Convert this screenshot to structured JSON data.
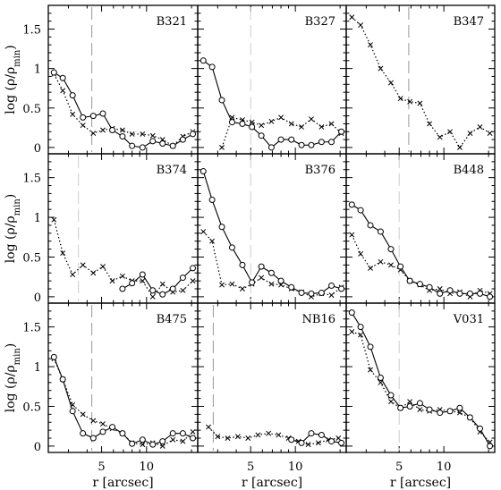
{
  "figure": {
    "ylabel": "log (ρ/ρ",
    "ylabel_sub": "min",
    "ylabel_close": ")",
    "xlabel": "r [arcsec]"
  },
  "chart_data": {
    "type": "line",
    "layout": "3x3 grid, shared axes",
    "x_scale": "log",
    "xlim": [
      2.2,
      22
    ],
    "ylim": [
      -0.08,
      1.8
    ],
    "xticks": [
      5,
      10
    ],
    "yticks": [
      0,
      0.5,
      1,
      1.5
    ],
    "ytick_labels": [
      "0",
      "0.5",
      "1",
      "1.5"
    ],
    "series_styles": {
      "solid": "solid line with open circles",
      "dotted": "dotted line with crosses"
    },
    "panels": [
      {
        "name": "B321",
        "vline": 4.3,
        "vline_color": "#999999",
        "solid": {
          "x": [
            2.4,
            2.75,
            3.2,
            3.75,
            4.4,
            5.1,
            5.9,
            6.9,
            8.0,
            9.4,
            11.0,
            12.8,
            15.0,
            17.5,
            20.4
          ],
          "y": [
            0.95,
            0.88,
            0.66,
            0.38,
            0.4,
            0.43,
            0.22,
            0.14,
            0.02,
            0.0,
            0.08,
            0.05,
            0.02,
            0.1,
            0.17
          ]
        },
        "dotted": {
          "x": [
            2.4,
            2.75,
            3.2,
            3.75,
            4.4,
            5.1,
            5.9,
            6.9,
            8.0,
            9.4,
            11.0,
            12.8,
            15.0,
            17.5,
            20.4
          ],
          "y": [
            0.93,
            0.72,
            0.42,
            0.28,
            0.18,
            0.22,
            0.24,
            0.22,
            0.17,
            0.17,
            0.15,
            0.1,
            0.02,
            0.14,
            0.2
          ]
        }
      },
      {
        "name": "B327",
        "vline": 5.0,
        "vline_color": "#cccccc",
        "solid": {
          "x": [
            2.4,
            2.75,
            3.2,
            3.75,
            4.4,
            5.1,
            5.9,
            6.9,
            8.0,
            9.4,
            11.0,
            12.8,
            15.0,
            17.5,
            20.4
          ],
          "y": [
            1.1,
            1.02,
            0.6,
            0.32,
            0.3,
            0.26,
            0.15,
            0.0,
            0.1,
            0.1,
            0.03,
            0.03,
            0.07,
            0.07,
            0.2
          ]
        },
        "dotted": {
          "x": [
            3.2,
            3.75,
            4.4,
            5.1,
            5.9,
            6.9,
            8.0,
            9.4,
            11.0,
            12.8,
            15.0,
            17.5,
            20.4
          ],
          "y": [
            0.0,
            0.38,
            0.35,
            0.32,
            0.28,
            0.33,
            0.38,
            0.3,
            0.26,
            0.36,
            0.26,
            0.3,
            0.18
          ]
        }
      },
      {
        "name": "B347",
        "vline": 5.8,
        "vline_color": "#999999",
        "solid": {
          "x": [],
          "y": []
        },
        "dotted": {
          "x": [
            2.4,
            2.75,
            3.2,
            3.75,
            4.4,
            5.1,
            5.9,
            6.9,
            8.0,
            9.4,
            11.0,
            12.8,
            15.0,
            17.5,
            20.4
          ],
          "y": [
            1.65,
            1.55,
            1.3,
            1.0,
            0.82,
            0.62,
            0.58,
            0.56,
            0.3,
            0.13,
            0.2,
            0.0,
            0.18,
            0.26,
            0.18
          ]
        }
      },
      {
        "name": "B374",
        "vline": 3.5,
        "vline_color": "#cccccc",
        "solid": {
          "x": [
            6.9,
            8.0,
            9.4,
            11.0,
            12.8,
            15.0,
            17.5,
            20.4
          ],
          "y": [
            0.1,
            0.17,
            0.28,
            0.08,
            0.03,
            0.1,
            0.24,
            0.36
          ]
        },
        "dotted": {
          "x": [
            2.4,
            2.75,
            3.2,
            3.75,
            4.4,
            5.1,
            5.9,
            6.9,
            8.0,
            9.4,
            11.0,
            12.8,
            15.0,
            17.5,
            20.4
          ],
          "y": [
            0.97,
            0.55,
            0.28,
            0.4,
            0.3,
            0.38,
            0.2,
            0.26,
            0.2,
            0.2,
            0.0,
            0.16,
            0.06,
            0.08,
            0.2
          ]
        }
      },
      {
        "name": "B376",
        "vline": 5.0,
        "vline_color": "#cccccc",
        "solid": {
          "x": [
            2.4,
            2.75,
            3.2,
            3.75,
            4.4,
            5.1,
            5.9,
            6.9,
            8.0,
            9.4,
            11.0,
            12.8,
            15.0,
            17.5,
            20.4
          ],
          "y": [
            1.58,
            1.22,
            0.88,
            0.62,
            0.4,
            0.18,
            0.38,
            0.3,
            0.2,
            0.12,
            0.05,
            0.04,
            0.05,
            0.14,
            0.1
          ]
        },
        "dotted": {
          "x": [
            2.4,
            2.75,
            3.2,
            3.75,
            4.4,
            5.1,
            5.9,
            6.9,
            8.0,
            9.4,
            11.0,
            12.8,
            15.0,
            17.5,
            20.4
          ],
          "y": [
            0.82,
            0.7,
            0.15,
            0.16,
            0.1,
            0.16,
            0.24,
            0.16,
            0.15,
            0.1,
            0.06,
            0.0,
            0.04,
            0.02,
            0.12
          ]
        }
      },
      {
        "name": "B448",
        "vline": 5.0,
        "vline_color": "#cccccc",
        "solid": {
          "x": [
            2.4,
            2.75,
            3.2,
            3.75,
            4.4,
            5.1,
            5.9,
            6.9,
            8.0,
            9.4,
            11.0,
            12.8,
            15.0,
            17.5,
            20.4
          ],
          "y": [
            1.16,
            1.09,
            0.9,
            0.82,
            0.6,
            0.38,
            0.2,
            0.16,
            0.12,
            0.04,
            0.08,
            0.04,
            0.04,
            0.04,
            0.0
          ]
        },
        "dotted": {
          "x": [
            2.4,
            2.75,
            3.2,
            3.75,
            4.4,
            5.1,
            5.9,
            6.9,
            8.0,
            9.4,
            11.0,
            12.8,
            15.0,
            17.5,
            20.4
          ],
          "y": [
            0.78,
            0.54,
            0.36,
            0.44,
            0.4,
            0.34,
            0.2,
            0.15,
            0.08,
            0.1,
            0.04,
            0.06,
            0.0,
            0.08,
            0.04
          ]
        }
      },
      {
        "name": "B475",
        "vline": 4.3,
        "vline_color": "#999999",
        "solid": {
          "x": [
            2.4,
            2.75,
            3.2,
            3.75,
            4.4,
            5.1,
            5.9,
            6.9,
            8.0,
            9.4,
            11.0,
            12.8,
            15.0,
            17.5,
            20.4
          ],
          "y": [
            1.12,
            0.84,
            0.44,
            0.16,
            0.1,
            0.18,
            0.24,
            0.16,
            0.03,
            0.08,
            0.02,
            0.06,
            0.16,
            0.16,
            0.1
          ]
        },
        "dotted": {
          "x": [
            2.4,
            2.75,
            3.2,
            3.75,
            4.4,
            5.1,
            5.9,
            6.9,
            8.0,
            9.4,
            11.0,
            12.8,
            15.0,
            17.5,
            20.4
          ],
          "y": [
            1.1,
            0.84,
            0.52,
            0.4,
            0.32,
            0.28,
            0.22,
            0.16,
            0.04,
            0.02,
            0.04,
            0.0,
            0.08,
            0.06,
            0.18
          ]
        }
      },
      {
        "name": "NB16",
        "vline": 2.8,
        "vline_color": "#999999",
        "solid": {
          "x": [
            9.4,
            11.0,
            12.8,
            15.0,
            17.5,
            20.4
          ],
          "y": [
            0.08,
            0.04,
            0.16,
            0.14,
            0.06,
            0.04
          ]
        },
        "dotted": {
          "x": [
            2.6,
            3.0,
            3.5,
            4.1,
            4.8,
            5.6,
            6.6,
            7.7,
            9.0,
            10.5,
            12.2,
            14.3,
            16.7,
            19.5
          ],
          "y": [
            0.24,
            0.12,
            0.1,
            0.12,
            0.1,
            0.14,
            0.16,
            0.14,
            0.1,
            0.06,
            0.02,
            0.04,
            0.08,
            0.1
          ]
        }
      },
      {
        "name": "V031",
        "vline": 5.0,
        "vline_color": "#cccccc",
        "solid": {
          "x": [
            2.4,
            2.75,
            3.2,
            3.75,
            4.4,
            5.1,
            5.9,
            6.9,
            8.0,
            9.4,
            11.0,
            12.8,
            15.0,
            17.5,
            20.4
          ],
          "y": [
            1.68,
            1.5,
            1.25,
            0.86,
            0.64,
            0.48,
            0.5,
            0.54,
            0.46,
            0.42,
            0.44,
            0.48,
            0.36,
            0.22,
            0.0
          ]
        },
        "dotted": {
          "x": [
            2.4,
            2.75,
            3.2,
            3.75,
            4.4,
            5.1,
            5.9,
            6.9,
            8.0,
            9.4,
            11.0,
            12.8,
            15.0,
            17.5,
            20.4
          ],
          "y": [
            1.44,
            1.4,
            0.96,
            0.8,
            0.56,
            0.48,
            0.56,
            0.46,
            0.44,
            0.46,
            0.44,
            0.42,
            0.36,
            0.18,
            0.05
          ]
        }
      }
    ]
  }
}
